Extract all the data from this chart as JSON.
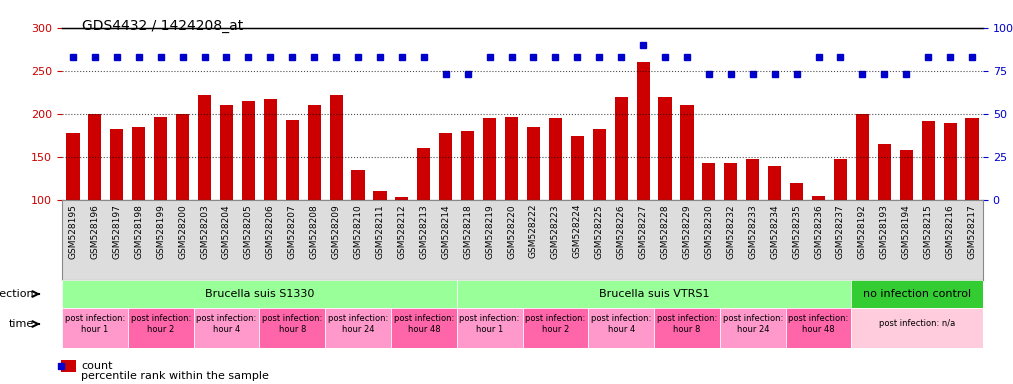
{
  "title": "GDS4432 / 1424208_at",
  "bar_color": "#cc0000",
  "dot_color": "#0000cc",
  "ylim_left": [
    100,
    300
  ],
  "ylim_right": [
    0,
    100
  ],
  "yticks_left": [
    100,
    150,
    200,
    250,
    300
  ],
  "yticks_right": [
    0,
    25,
    50,
    75,
    100
  ],
  "categories": [
    "GSM528195",
    "GSM528196",
    "GSM528197",
    "GSM528198",
    "GSM528199",
    "GSM528200",
    "GSM528203",
    "GSM528204",
    "GSM528205",
    "GSM528206",
    "GSM528207",
    "GSM528208",
    "GSM528209",
    "GSM528210",
    "GSM528211",
    "GSM528212",
    "GSM528213",
    "GSM528214",
    "GSM528218",
    "GSM528219",
    "GSM528220",
    "GSM528222",
    "GSM528223",
    "GSM528224",
    "GSM528225",
    "GSM528226",
    "GSM528227",
    "GSM528228",
    "GSM528229",
    "GSM528230",
    "GSM528232",
    "GSM528233",
    "GSM528234",
    "GSM528235",
    "GSM528236",
    "GSM528237",
    "GSM528192",
    "GSM528193",
    "GSM528194",
    "GSM528215",
    "GSM528216",
    "GSM528217"
  ],
  "bar_values": [
    178,
    200,
    183,
    185,
    196,
    200,
    222,
    210,
    215,
    218,
    193,
    210,
    222,
    135,
    110,
    103,
    160,
    178,
    180,
    195,
    197,
    185,
    195,
    175,
    183,
    220,
    260,
    220,
    210,
    143,
    143,
    148,
    140,
    120,
    105,
    148,
    200,
    165,
    158,
    192,
    190,
    195
  ],
  "dot_values": [
    83,
    83,
    83,
    83,
    83,
    83,
    83,
    83,
    83,
    83,
    83,
    83,
    83,
    83,
    83,
    83,
    83,
    73,
    73,
    83,
    83,
    83,
    83,
    83,
    83,
    83,
    90,
    83,
    83,
    73,
    73,
    73,
    73,
    73,
    83,
    83,
    73,
    73,
    73,
    83,
    83,
    83
  ],
  "infection_groups": [
    {
      "label": "Brucella suis S1330",
      "start": 0,
      "end": 18,
      "color": "#99ff99"
    },
    {
      "label": "Brucella suis VTRS1",
      "start": 18,
      "end": 36,
      "color": "#99ff99"
    },
    {
      "label": "no infection control",
      "start": 36,
      "end": 42,
      "color": "#33cc33"
    }
  ],
  "time_groups": [
    {
      "label": "post infection:\nhour 1",
      "start": 0,
      "end": 3,
      "color": "#ff99cc"
    },
    {
      "label": "post infection:\nhour 2",
      "start": 3,
      "end": 6,
      "color": "#ff66aa"
    },
    {
      "label": "post infection:\nhour 4",
      "start": 6,
      "end": 9,
      "color": "#ff99cc"
    },
    {
      "label": "post infection:\nhour 8",
      "start": 9,
      "end": 12,
      "color": "#ff66aa"
    },
    {
      "label": "post infection:\nhour 24",
      "start": 12,
      "end": 15,
      "color": "#ff99cc"
    },
    {
      "label": "post infection:\nhour 48",
      "start": 15,
      "end": 18,
      "color": "#ff66aa"
    },
    {
      "label": "post infection:\nhour 1",
      "start": 18,
      "end": 21,
      "color": "#ff99cc"
    },
    {
      "label": "post infection:\nhour 2",
      "start": 21,
      "end": 24,
      "color": "#ff66aa"
    },
    {
      "label": "post infection:\nhour 4",
      "start": 24,
      "end": 27,
      "color": "#ff99cc"
    },
    {
      "label": "post infection:\nhour 8",
      "start": 27,
      "end": 30,
      "color": "#ff66aa"
    },
    {
      "label": "post infection:\nhour 24",
      "start": 30,
      "end": 33,
      "color": "#ff99cc"
    },
    {
      "label": "post infection:\nhour 48",
      "start": 33,
      "end": 36,
      "color": "#ff66aa"
    },
    {
      "label": "post infection: n/a",
      "start": 36,
      "end": 42,
      "color": "#ffccdd"
    }
  ],
  "background_color": "#ffffff",
  "tick_color_left": "#cc0000",
  "tick_color_right": "#0000cc",
  "grid_color": "#000000",
  "xlabel_area_color": "#cccccc"
}
